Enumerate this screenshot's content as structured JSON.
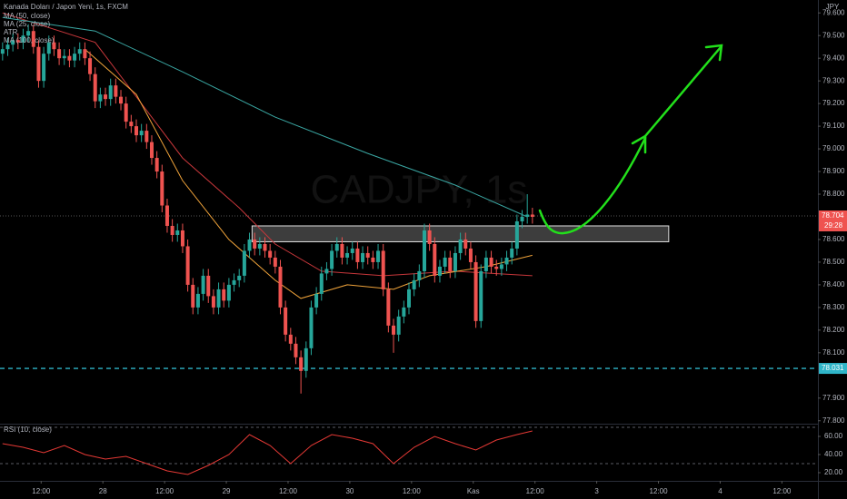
{
  "chart_data": [
    {
      "type": "candlestick",
      "title": "Kanada Doları / Japon Yeni, 1s, FXCM",
      "watermark": "CADJPY, 1s",
      "y_unit": "JPY",
      "up_color": "#26a69a",
      "down_color": "#ef5350",
      "x": [
        0,
        1,
        2,
        3,
        4,
        5,
        6,
        7,
        8,
        9,
        10,
        11,
        12,
        13,
        14,
        15,
        16,
        17,
        18,
        19,
        20,
        21,
        22,
        23,
        24,
        25,
        26,
        27,
        28,
        29,
        30,
        31,
        32,
        33,
        34,
        35,
        36,
        37,
        38,
        39,
        40,
        41,
        42,
        43,
        44,
        45,
        46,
        47,
        48,
        49,
        50,
        51,
        52,
        53,
        54,
        55,
        56,
        57,
        58,
        59,
        60,
        61,
        62,
        63,
        64,
        65,
        66,
        67,
        68,
        69,
        70,
        71,
        72,
        73,
        74,
        75,
        76,
        77,
        78,
        79,
        80,
        81,
        82,
        83,
        84,
        85,
        86,
        87,
        88,
        89,
        90,
        91,
        92,
        93,
        94,
        95,
        96,
        97,
        98,
        99,
        100,
        101,
        102,
        103
      ],
      "open": [
        79.42,
        79.44,
        79.46,
        79.48,
        79.47,
        79.5,
        79.52,
        79.45,
        79.3,
        79.42,
        79.47,
        79.44,
        79.4,
        79.41,
        79.39,
        79.42,
        79.44,
        79.4,
        79.33,
        79.21,
        79.24,
        79.22,
        79.28,
        79.23,
        79.2,
        79.12,
        79.1,
        79.06,
        79.08,
        79.03,
        78.96,
        78.9,
        78.75,
        78.66,
        78.62,
        78.64,
        78.57,
        78.4,
        78.3,
        78.36,
        78.44,
        78.35,
        78.3,
        78.38,
        78.33,
        78.4,
        78.42,
        78.44,
        78.55,
        78.6,
        78.56,
        78.58,
        78.55,
        78.52,
        78.48,
        78.3,
        78.18,
        78.14,
        78.08,
        78.02,
        78.12,
        78.3,
        78.36,
        78.45,
        78.47,
        78.55,
        78.58,
        78.52,
        78.54,
        78.56,
        78.5,
        78.54,
        78.52,
        78.5,
        78.55,
        78.38,
        78.22,
        78.18,
        78.26,
        78.3,
        78.38,
        78.42,
        78.46,
        78.64,
        78.58,
        78.44,
        78.48,
        78.52,
        78.46,
        78.54,
        78.6,
        78.56,
        78.5,
        78.24,
        78.46,
        78.52,
        78.48,
        78.47,
        78.49,
        78.52,
        78.56,
        78.68,
        78.7,
        78.71
      ],
      "high": [
        79.47,
        79.49,
        79.51,
        79.51,
        79.53,
        79.55,
        79.55,
        79.48,
        79.45,
        79.5,
        79.5,
        79.47,
        79.44,
        79.44,
        79.45,
        79.47,
        79.47,
        79.43,
        79.36,
        79.27,
        79.27,
        79.31,
        79.31,
        79.26,
        79.23,
        79.15,
        79.13,
        79.11,
        79.11,
        79.06,
        78.99,
        78.93,
        78.78,
        78.69,
        78.67,
        78.67,
        78.6,
        78.43,
        78.39,
        78.47,
        78.47,
        78.38,
        78.41,
        78.41,
        78.43,
        78.45,
        78.47,
        78.58,
        78.63,
        78.63,
        78.61,
        78.61,
        78.58,
        78.55,
        78.51,
        78.33,
        78.21,
        78.17,
        78.11,
        78.15,
        78.33,
        78.39,
        78.48,
        78.5,
        78.58,
        78.61,
        78.61,
        78.57,
        78.59,
        78.59,
        78.57,
        78.57,
        78.55,
        78.58,
        78.58,
        78.41,
        78.25,
        78.29,
        78.33,
        78.41,
        78.45,
        78.49,
        78.67,
        78.67,
        78.61,
        78.51,
        78.55,
        78.55,
        78.57,
        78.63,
        78.63,
        78.59,
        78.53,
        78.49,
        78.55,
        78.55,
        78.51,
        78.52,
        78.55,
        78.59,
        78.71,
        78.73,
        78.8,
        78.74
      ],
      "low": [
        79.39,
        79.41,
        79.43,
        79.44,
        79.44,
        79.47,
        79.42,
        79.27,
        79.27,
        79.39,
        79.41,
        79.37,
        79.37,
        79.36,
        79.36,
        79.39,
        79.37,
        79.3,
        79.18,
        79.18,
        79.19,
        79.19,
        79.2,
        79.17,
        79.09,
        79.07,
        79.03,
        79.03,
        79.0,
        78.93,
        78.87,
        78.72,
        78.63,
        78.59,
        78.59,
        78.54,
        78.37,
        78.27,
        78.27,
        78.33,
        78.32,
        78.27,
        78.27,
        78.3,
        78.3,
        78.37,
        78.39,
        78.41,
        78.52,
        78.53,
        78.53,
        78.52,
        78.49,
        78.45,
        78.27,
        78.15,
        78.11,
        78.05,
        77.92,
        77.99,
        78.09,
        78.27,
        78.33,
        78.42,
        78.44,
        78.52,
        78.49,
        78.49,
        78.51,
        78.47,
        78.47,
        78.49,
        78.47,
        78.47,
        78.35,
        78.19,
        78.1,
        78.15,
        78.23,
        78.27,
        78.35,
        78.39,
        78.43,
        78.55,
        78.41,
        78.41,
        78.45,
        78.43,
        78.43,
        78.51,
        78.53,
        78.47,
        78.21,
        78.21,
        78.43,
        78.45,
        78.44,
        78.44,
        78.46,
        78.49,
        78.53,
        78.65,
        78.67,
        78.67
      ],
      "close": [
        79.44,
        79.46,
        79.48,
        79.47,
        79.5,
        79.52,
        79.45,
        79.3,
        79.42,
        79.47,
        79.44,
        79.4,
        79.41,
        79.39,
        79.42,
        79.44,
        79.4,
        79.33,
        79.21,
        79.24,
        79.22,
        79.28,
        79.23,
        79.2,
        79.12,
        79.1,
        79.06,
        79.08,
        79.03,
        78.96,
        78.9,
        78.75,
        78.66,
        78.62,
        78.64,
        78.57,
        78.4,
        78.3,
        78.36,
        78.44,
        78.35,
        78.3,
        78.38,
        78.33,
        78.4,
        78.42,
        78.44,
        78.55,
        78.6,
        78.56,
        78.58,
        78.55,
        78.52,
        78.48,
        78.3,
        78.18,
        78.14,
        78.08,
        78.02,
        78.12,
        78.3,
        78.36,
        78.45,
        78.47,
        78.55,
        78.58,
        78.52,
        78.54,
        78.56,
        78.5,
        78.54,
        78.52,
        78.5,
        78.55,
        78.38,
        78.22,
        78.18,
        78.26,
        78.3,
        78.38,
        78.42,
        78.46,
        78.64,
        78.58,
        78.44,
        78.48,
        78.52,
        78.46,
        78.54,
        78.6,
        78.56,
        78.5,
        78.24,
        78.46,
        78.52,
        78.48,
        78.47,
        78.49,
        78.52,
        78.56,
        78.68,
        78.7,
        78.71,
        78.7
      ],
      "series": [
        {
          "name": "MA (50, close)",
          "color": "#c8373b",
          "x": [
            0,
            18,
            35,
            46,
            53,
            62,
            74,
            88,
            103
          ],
          "values": [
            79.6,
            79.47,
            78.96,
            78.74,
            78.58,
            78.46,
            78.44,
            78.46,
            78.44
          ]
        },
        {
          "name": "MA (25, close)",
          "color": "#f0a33a",
          "x": [
            16,
            26,
            35,
            44,
            53,
            58,
            67,
            76,
            83,
            94,
            103
          ],
          "values": [
            79.44,
            79.24,
            78.86,
            78.6,
            78.42,
            78.34,
            78.4,
            78.38,
            78.44,
            78.48,
            78.53
          ]
        },
        {
          "name": "ATR"
        },
        {
          "name": "MA (100, close)",
          "color": "#3aa7a3",
          "x": [
            0,
            18,
            35,
            53,
            71,
            88,
            102
          ],
          "values": [
            79.58,
            79.52,
            79.34,
            79.14,
            78.98,
            78.84,
            78.7
          ]
        }
      ],
      "xlim": [
        -0.5,
        158.5
      ],
      "xticks": [
        {
          "value": 7.5,
          "label": "12:00"
        },
        {
          "value": 19.5,
          "label": "28"
        },
        {
          "value": 31.5,
          "label": "12:00"
        },
        {
          "value": 43.5,
          "label": "29"
        },
        {
          "value": 55.5,
          "label": "12:00"
        },
        {
          "value": 67.5,
          "label": "30"
        },
        {
          "value": 79.5,
          "label": "12:00"
        },
        {
          "value": 91.5,
          "label": "Kas"
        },
        {
          "value": 103.5,
          "label": "12:00"
        },
        {
          "value": 115.5,
          "label": "3"
        },
        {
          "value": 127.5,
          "label": "12:00"
        },
        {
          "value": 139.5,
          "label": "4"
        },
        {
          "value": 151.5,
          "label": "12:00"
        }
      ],
      "ylim": [
        77.787,
        79.657
      ],
      "yticks": [
        {
          "value": 79.6,
          "label": "79.600"
        },
        {
          "value": 79.5,
          "label": "79.500"
        },
        {
          "value": 79.4,
          "label": "79.400"
        },
        {
          "value": 79.3,
          "label": "79.300"
        },
        {
          "value": 79.2,
          "label": "79.200"
        },
        {
          "value": 79.1,
          "label": "79.100"
        },
        {
          "value": 79.0,
          "label": "79.000"
        },
        {
          "value": 78.9,
          "label": "78.900"
        },
        {
          "value": 78.8,
          "label": "78.800"
        },
        {
          "value": 78.6,
          "label": "78.600"
        },
        {
          "value": 78.5,
          "label": "78.500"
        },
        {
          "value": 78.4,
          "label": "78.400"
        },
        {
          "value": 78.3,
          "label": "78.300"
        },
        {
          "value": 78.2,
          "label": "78.200"
        },
        {
          "value": 78.1,
          "label": "78.100"
        },
        {
          "value": 77.9,
          "label": "77.900"
        },
        {
          "value": 77.8,
          "label": "77.800"
        }
      ],
      "last_price": {
        "value": 78.704,
        "countdown": "29:28"
      },
      "level": 78.031,
      "zone": {
        "x": [
          48.5,
          129.5
        ],
        "y": [
          78.59,
          78.66
        ]
      }
    },
    {
      "type": "line",
      "series": [
        {
          "name": "RSI (10, close)",
          "color": "#e53935",
          "x": [
            0,
            4,
            8,
            12,
            16,
            20,
            24,
            28,
            32,
            36,
            40,
            44,
            48,
            52,
            56,
            60,
            64,
            68,
            72,
            76,
            80,
            84,
            88,
            92,
            96,
            100,
            103
          ],
          "values": [
            52,
            48,
            42,
            50,
            40,
            35,
            38,
            30,
            22,
            18,
            28,
            40,
            62,
            50,
            30,
            50,
            62,
            58,
            52,
            30,
            48,
            60,
            52,
            45,
            56,
            62,
            66
          ]
        }
      ],
      "ylim": [
        11,
        73
      ],
      "yticks": [
        {
          "value": 60,
          "label": "60.00"
        },
        {
          "value": 40,
          "label": "40.00"
        },
        {
          "value": 20,
          "label": "20.00"
        }
      ],
      "bands": [
        70,
        30
      ]
    }
  ]
}
